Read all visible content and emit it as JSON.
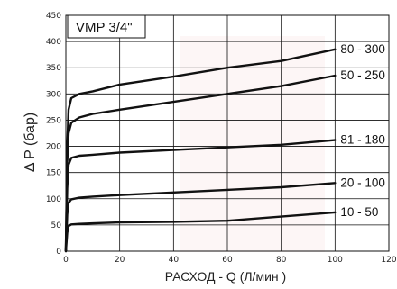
{
  "chart_data": {
    "type": "line",
    "title": "VMP 3/4\"",
    "xlabel": "РАСХОД - Q (Л/мин )",
    "ylabel": "Δ P  (бар)",
    "xlim": [
      0,
      120
    ],
    "ylim": [
      0,
      450
    ],
    "x_ticks": [
      "0",
      "20",
      "40",
      "60",
      "80",
      "100",
      "120"
    ],
    "y_ticks": [
      "0",
      "50",
      "100",
      "150",
      "200",
      "250",
      "300",
      "350",
      "400",
      "450"
    ],
    "grid": true,
    "series": [
      {
        "name": "80 - 300",
        "points": [
          [
            0,
            0
          ],
          [
            0.5,
            200
          ],
          [
            1,
            270
          ],
          [
            2,
            292
          ],
          [
            5,
            300
          ],
          [
            10,
            305
          ],
          [
            20,
            318
          ],
          [
            40,
            333
          ],
          [
            60,
            350
          ],
          [
            80,
            363
          ],
          [
            100,
            385
          ]
        ]
      },
      {
        "name": "50 - 250",
        "points": [
          [
            0,
            0
          ],
          [
            0.5,
            170
          ],
          [
            1,
            225
          ],
          [
            2,
            245
          ],
          [
            5,
            255
          ],
          [
            10,
            262
          ],
          [
            20,
            270
          ],
          [
            40,
            285
          ],
          [
            60,
            300
          ],
          [
            80,
            315
          ],
          [
            100,
            335
          ]
        ]
      },
      {
        "name": "81 - 180",
        "points": [
          [
            0,
            0
          ],
          [
            0.5,
            120
          ],
          [
            1,
            165
          ],
          [
            2,
            178
          ],
          [
            5,
            182
          ],
          [
            10,
            184
          ],
          [
            20,
            188
          ],
          [
            40,
            193
          ],
          [
            60,
            198
          ],
          [
            80,
            203
          ],
          [
            100,
            212
          ]
        ]
      },
      {
        "name": "20 - 100",
        "points": [
          [
            0,
            0
          ],
          [
            0.5,
            70
          ],
          [
            1,
            92
          ],
          [
            2,
            99
          ],
          [
            5,
            102
          ],
          [
            10,
            104
          ],
          [
            20,
            107
          ],
          [
            40,
            112
          ],
          [
            60,
            117
          ],
          [
            80,
            122
          ],
          [
            100,
            130
          ]
        ]
      },
      {
        "name": "10 - 50",
        "points": [
          [
            0,
            0
          ],
          [
            0.5,
            35
          ],
          [
            1,
            48
          ],
          [
            2,
            51
          ],
          [
            5,
            52
          ],
          [
            10,
            53
          ],
          [
            20,
            55
          ],
          [
            40,
            56
          ],
          [
            60,
            58
          ],
          [
            80,
            66
          ],
          [
            100,
            74
          ]
        ]
      }
    ]
  }
}
